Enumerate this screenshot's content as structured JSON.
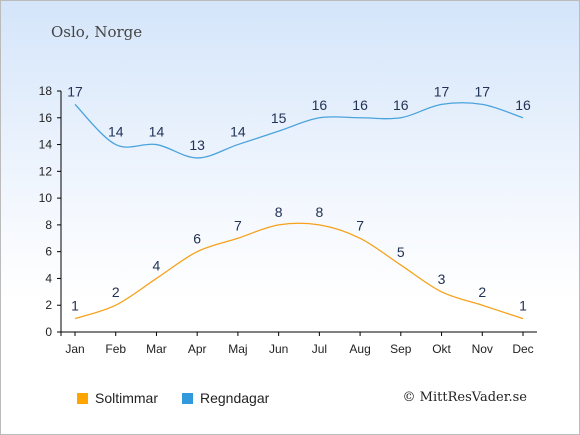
{
  "header": {
    "place": "Oslo, Norge"
  },
  "legend": {
    "sun_label": "Soltimmar",
    "rain_label": "Regndagar"
  },
  "footer": {
    "credit": "© MittResVader.se"
  },
  "colors": {
    "sun": "#ffa500",
    "rain": "#3399dd",
    "rain_line": "#4aa3dc",
    "sun_line": "#f7a11a",
    "axis": "#000000",
    "grid": "#dddddd"
  },
  "chart_data": {
    "type": "line",
    "categories": [
      "Jan",
      "Feb",
      "Mar",
      "Apr",
      "Maj",
      "Jun",
      "Jul",
      "Aug",
      "Sep",
      "Okt",
      "Nov",
      "Dec"
    ],
    "series": [
      {
        "name": "Soltimmar",
        "values": [
          1,
          2,
          4,
          6,
          7,
          8,
          8,
          7,
          5,
          3,
          2,
          1
        ]
      },
      {
        "name": "Regndagar",
        "values": [
          17,
          14,
          14,
          13,
          14,
          15,
          16,
          16,
          16,
          17,
          17,
          16
        ]
      }
    ],
    "y_ticks": [
      "0",
      "2",
      "4",
      "6",
      "8",
      "10",
      "12",
      "14",
      "16",
      "18"
    ],
    "ylim": [
      0,
      18
    ],
    "grid": false,
    "legend_position": "bottom"
  }
}
